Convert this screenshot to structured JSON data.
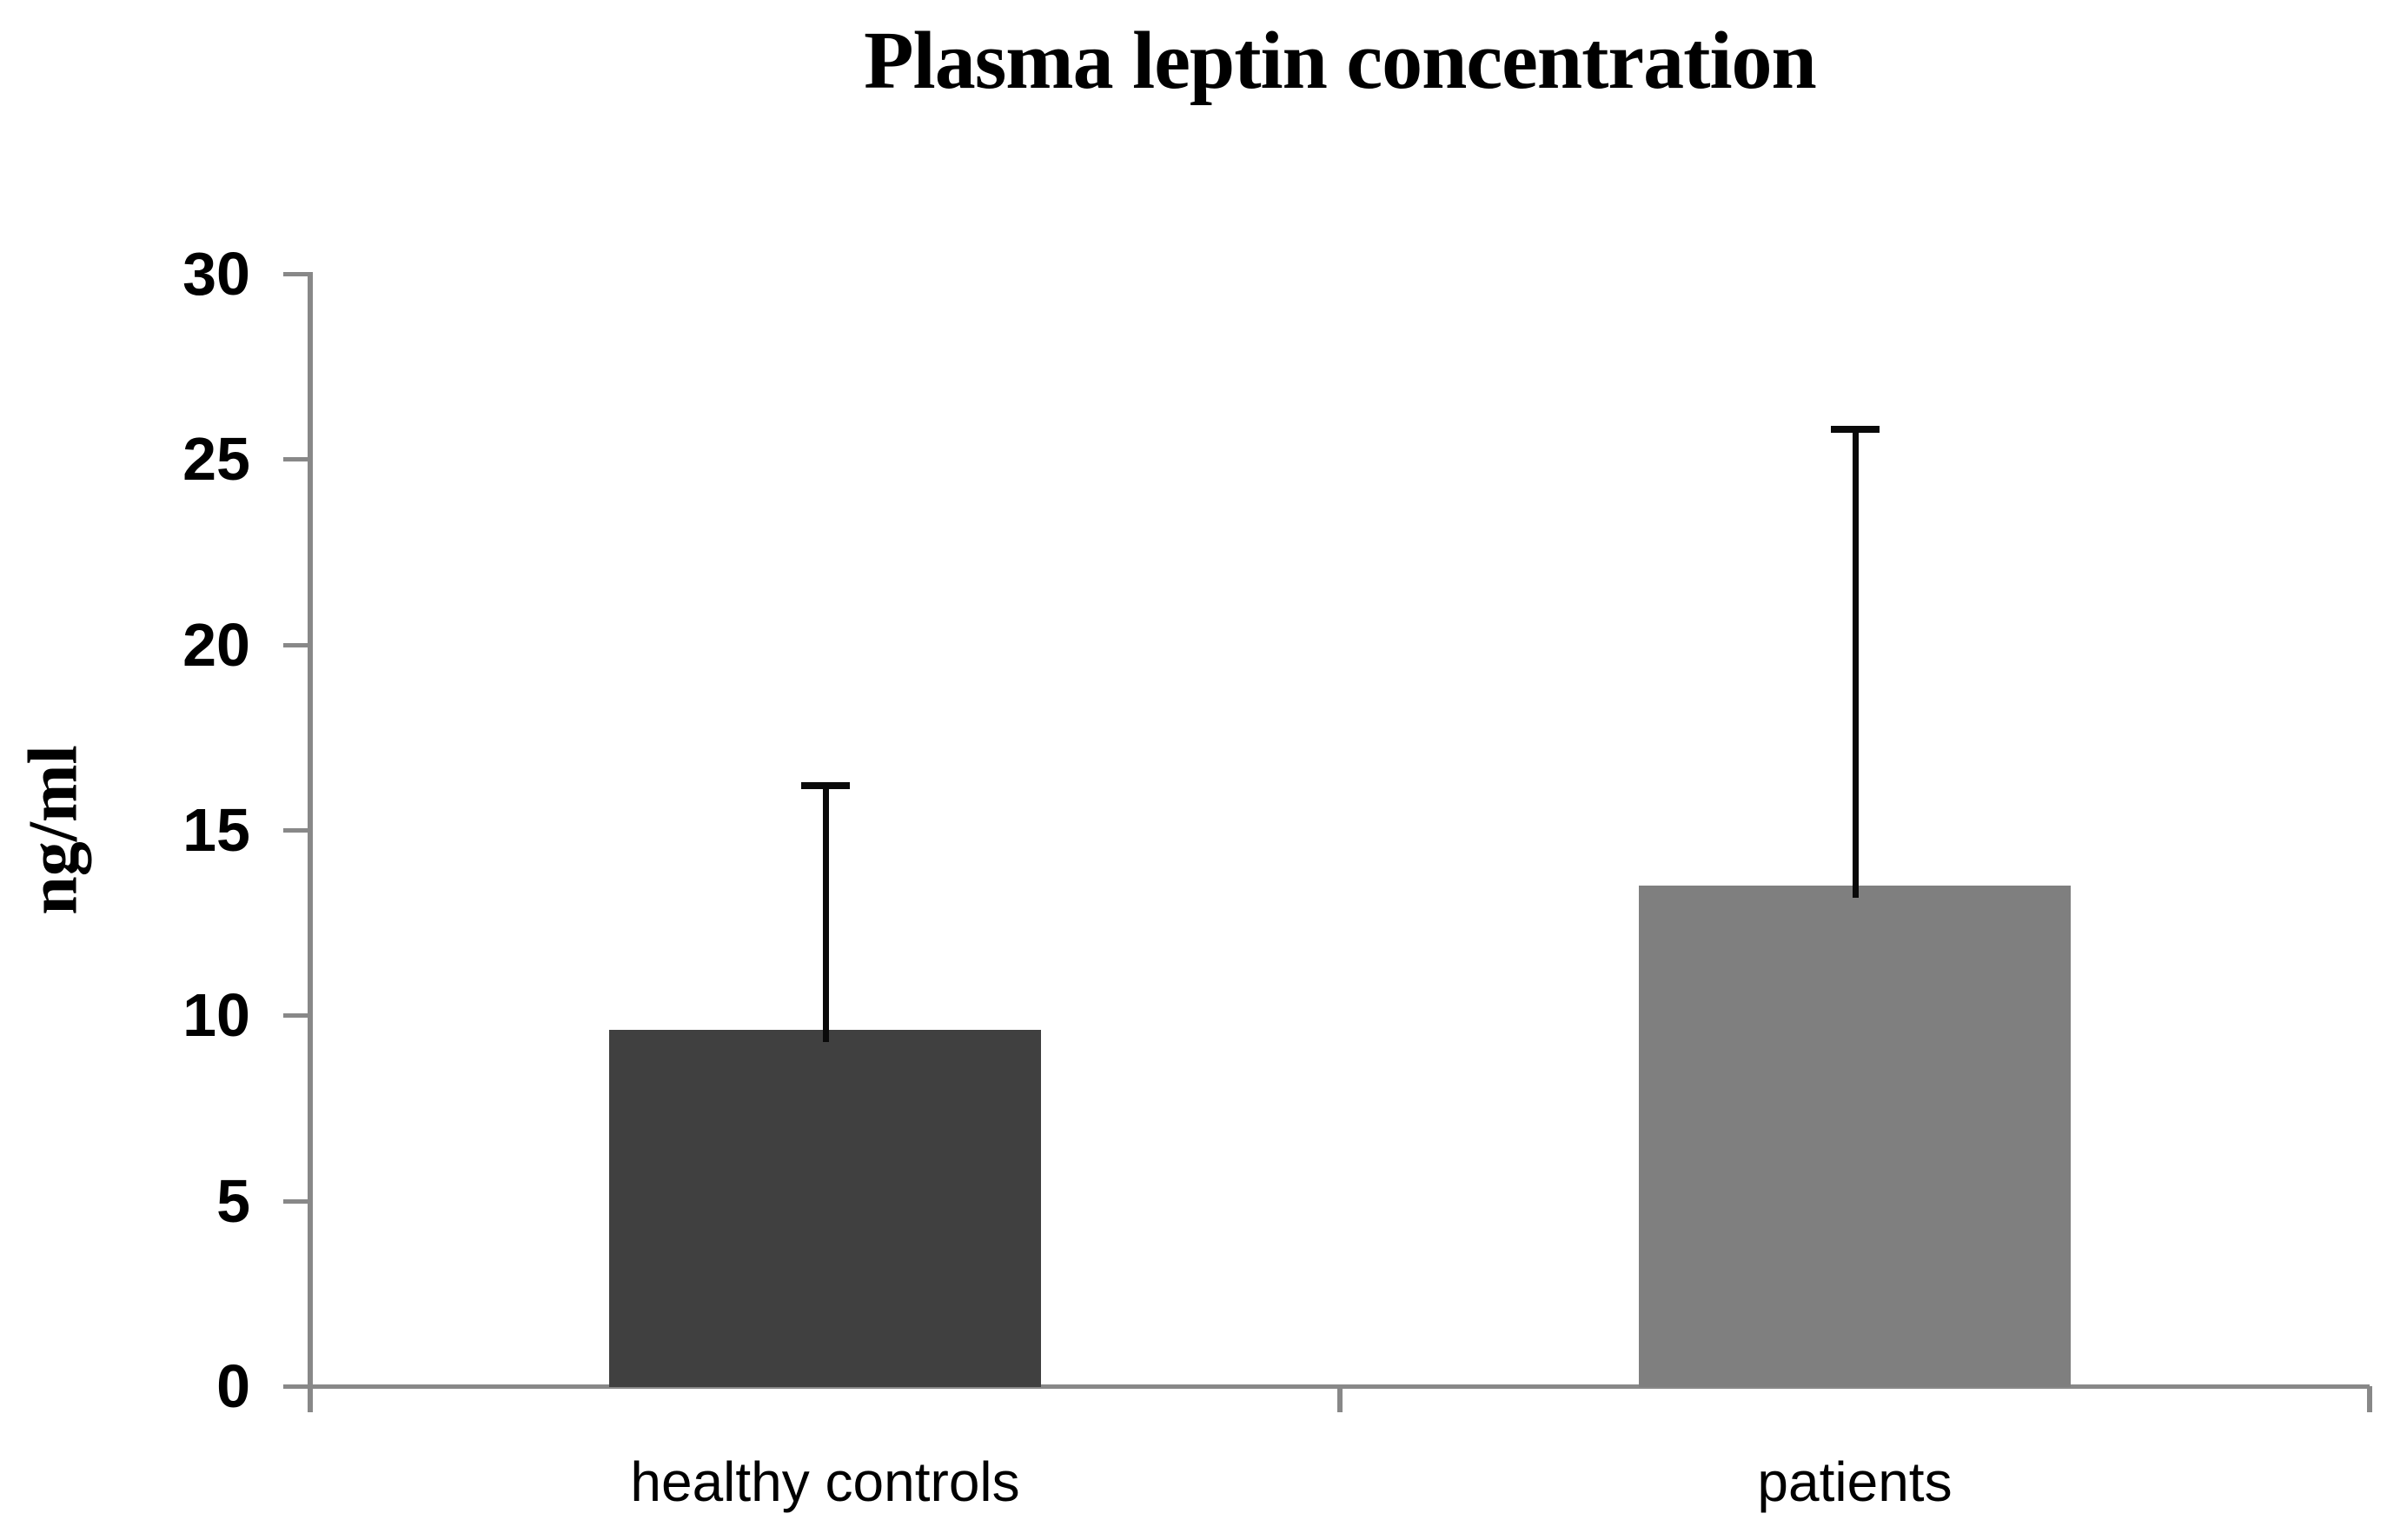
{
  "page": {
    "background": "#FFFFFF"
  },
  "chart_data": {
    "type": "bar",
    "title": "Plasma leptin concentration",
    "xlabel": "",
    "ylabel": "ng/ml",
    "categories": [
      "healthy controls",
      "patients"
    ],
    "values": [
      9.6,
      13.5
    ],
    "error_plus": [
      6.7,
      12.4
    ],
    "error_bar_tops": [
      16.3,
      25.9
    ],
    "ylim": [
      0,
      30
    ],
    "ytick_step": 5,
    "yticks": [
      "0",
      "5",
      "10",
      "15",
      "20",
      "25",
      "30"
    ],
    "grid": false,
    "legend": "none",
    "bar_colors": [
      "#404040",
      "#7F7F7F"
    ],
    "axis_color": "#888888",
    "error_bar_color": "#0A0A0A",
    "text_color": "#000000"
  }
}
